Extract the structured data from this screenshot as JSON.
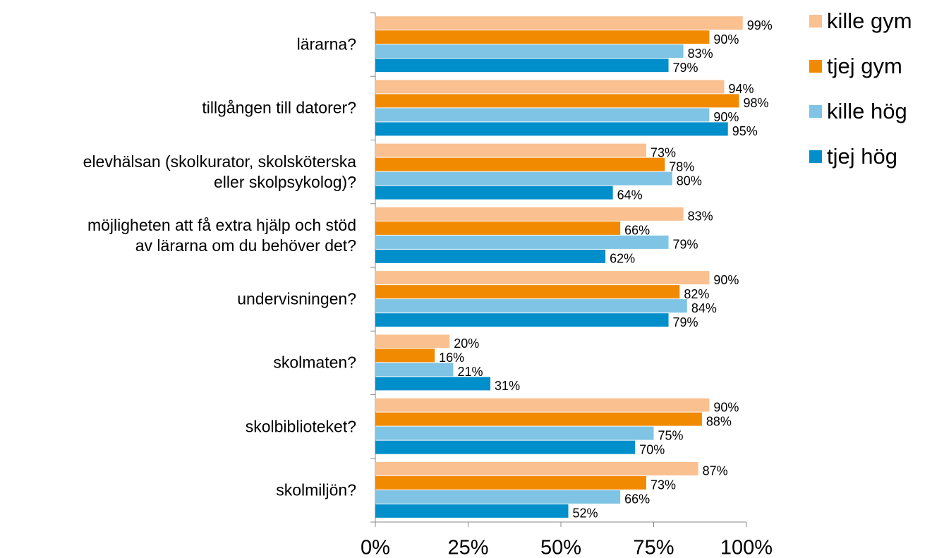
{
  "chart_data": {
    "type": "barh",
    "categories": [
      "lärarna?",
      "tillgången till datorer?",
      "elevhälsan (skolkurator, skolsköterska\neller skolpsykolog)?",
      "möjligheten att få extra hjälp och stöd\nav lärarna om du behöver det?",
      "undervisningen?",
      "skolmaten?",
      "skolbiblioteket?",
      "skolmiljön?"
    ],
    "series": [
      {
        "name": "kille gym",
        "color": "#fac090",
        "values": [
          99,
          94,
          73,
          83,
          90,
          20,
          90,
          87
        ],
        "value_labels": [
          "99%",
          "94%",
          "73%",
          "83%",
          "90%",
          "20%",
          "90%",
          "87%"
        ]
      },
      {
        "name": "tjej gym",
        "color": "#f18a00",
        "values": [
          90,
          98,
          78,
          66,
          82,
          16,
          88,
          73
        ],
        "value_labels": [
          "90%",
          "98%",
          "78%",
          "66%",
          "82%",
          "16%",
          "88%",
          "73%"
        ]
      },
      {
        "name": "kille hög",
        "color": "#7fc4e4",
        "values": [
          83,
          90,
          80,
          79,
          84,
          21,
          75,
          66
        ],
        "value_labels": [
          "83%",
          "90%",
          "80%",
          "79%",
          "84%",
          "21%",
          "75%",
          "66%"
        ]
      },
      {
        "name": "tjej hög",
        "color": "#008fcb",
        "values": [
          79,
          95,
          64,
          62,
          79,
          31,
          70,
          52
        ],
        "value_labels": [
          "79%",
          "95%",
          "64%",
          "62%",
          "79%",
          "31%",
          "70%",
          "52%"
        ]
      }
    ],
    "xlim": [
      0,
      100
    ],
    "xticks": [
      {
        "value": 0,
        "label": "0%"
      },
      {
        "value": 25,
        "label": "25%"
      },
      {
        "value": 50,
        "label": "50%"
      },
      {
        "value": 75,
        "label": "75%"
      },
      {
        "value": 100,
        "label": "100%"
      }
    ],
    "legend": "right"
  }
}
